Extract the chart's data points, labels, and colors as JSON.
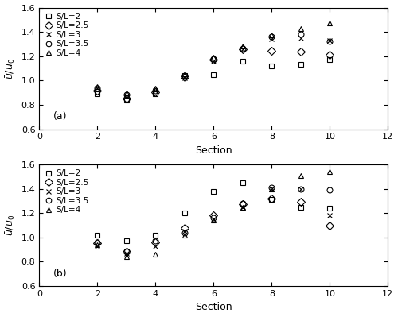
{
  "sections": [
    2,
    3,
    4,
    5,
    6,
    7,
    8,
    9,
    10
  ],
  "panel_a": {
    "SL2": [
      0.89,
      0.84,
      0.89,
      1.04,
      1.05,
      1.16,
      1.12,
      1.13,
      1.17
    ],
    "SL2p5": [
      0.92,
      0.855,
      0.905,
      1.03,
      1.17,
      1.255,
      1.245,
      1.235,
      1.21
    ],
    "SL3": [
      0.935,
      0.875,
      0.915,
      1.025,
      1.16,
      1.26,
      1.345,
      1.35,
      1.33
    ],
    "SL3p5": [
      0.94,
      0.882,
      0.92,
      1.04,
      1.18,
      1.265,
      1.36,
      1.38,
      1.32
    ],
    "SL4": [
      0.95,
      0.895,
      0.935,
      1.055,
      1.195,
      1.285,
      1.375,
      1.425,
      1.47
    ]
  },
  "panel_b": {
    "SL2": [
      1.02,
      0.97,
      1.02,
      1.2,
      1.38,
      1.45,
      1.31,
      1.25,
      1.24
    ],
    "SL2p5": [
      0.95,
      0.88,
      0.96,
      1.08,
      1.18,
      1.27,
      1.32,
      1.29,
      1.1
    ],
    "SL3": [
      0.93,
      0.87,
      0.93,
      1.05,
      1.15,
      1.25,
      1.4,
      1.4,
      1.18
    ],
    "SL3p5": [
      0.96,
      0.89,
      0.97,
      1.04,
      1.16,
      1.28,
      1.41,
      1.4,
      1.39
    ],
    "SL4": [
      0.94,
      0.84,
      0.86,
      1.02,
      1.14,
      1.25,
      1.4,
      1.51,
      1.54
    ]
  },
  "legend_labels": [
    "S/L=2",
    "S/L=2.5",
    "S/L=3",
    "S/L=3.5",
    "S/L=4"
  ],
  "markers": [
    "s",
    "D",
    "x",
    "o",
    "^"
  ],
  "open_markers": [
    "s",
    "D",
    "o",
    "^"
  ],
  "ylabel": "$\\bar{u}/u_0$",
  "xlabel": "Section",
  "xlim": [
    0,
    12
  ],
  "ylim": [
    0.6,
    1.6
  ],
  "yticks": [
    0.6,
    0.8,
    1.0,
    1.2,
    1.4,
    1.6
  ],
  "xticks": [
    0,
    2,
    4,
    6,
    8,
    10,
    12
  ],
  "label_a": "(a)",
  "label_b": "(b)",
  "markersize": 5,
  "color": "black"
}
